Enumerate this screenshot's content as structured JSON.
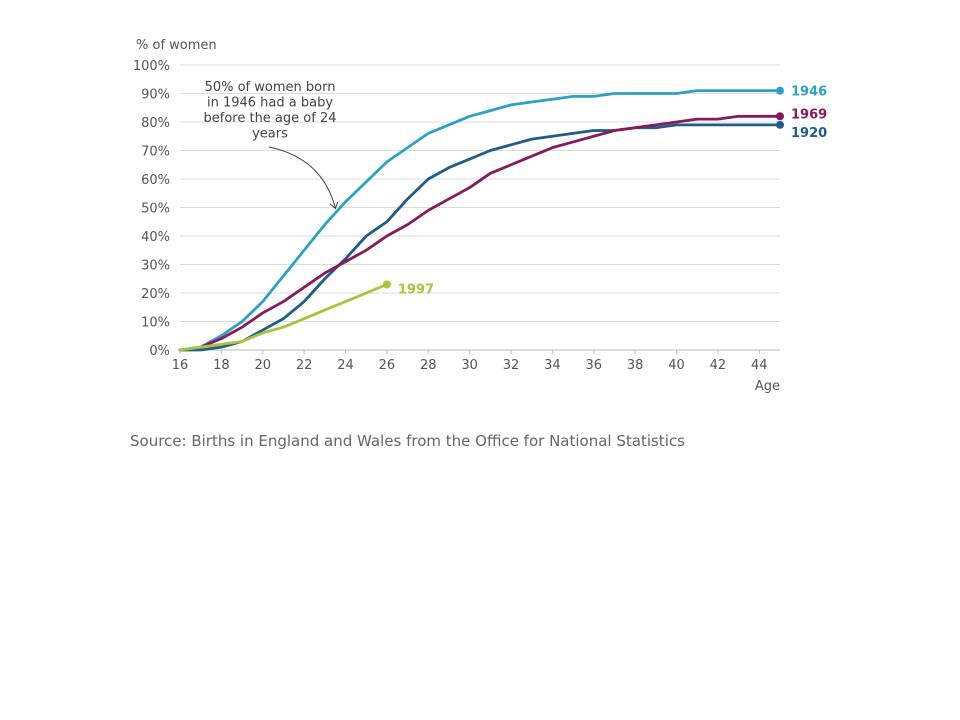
{
  "chart_data": {
    "type": "line",
    "ylabel": "% of women",
    "xlabel": "Age",
    "xlim": [
      16,
      45
    ],
    "ylim": [
      0,
      100
    ],
    "xticks": [
      16,
      18,
      20,
      22,
      24,
      26,
      28,
      30,
      32,
      34,
      36,
      38,
      40,
      42,
      44
    ],
    "yticks": [
      0,
      10,
      20,
      30,
      40,
      50,
      60,
      70,
      80,
      90,
      100
    ],
    "ytick_labels": [
      "0%",
      "10%",
      "20%",
      "30%",
      "40%",
      "50%",
      "60%",
      "70%",
      "80%",
      "90%",
      "100%"
    ],
    "grid": true,
    "series": [
      {
        "name": "1946",
        "color": "#2ea0c6",
        "x": [
          16,
          17,
          18,
          19,
          20,
          21,
          22,
          23,
          24,
          25,
          26,
          27,
          28,
          29,
          30,
          31,
          32,
          33,
          34,
          35,
          36,
          37,
          38,
          39,
          40,
          41,
          42,
          43,
          44,
          45
        ],
        "values": [
          0,
          1,
          5,
          10,
          17,
          26,
          35,
          44,
          52,
          59,
          66,
          71,
          76,
          79,
          82,
          84,
          86,
          87,
          88,
          89,
          89,
          90,
          90,
          90,
          90,
          91,
          91,
          91,
          91,
          91
        ]
      },
      {
        "name": "1920",
        "color": "#205c8a",
        "x": [
          16,
          17,
          18,
          19,
          20,
          21,
          22,
          23,
          24,
          25,
          26,
          27,
          28,
          29,
          30,
          31,
          32,
          33,
          34,
          35,
          36,
          37,
          38,
          39,
          40,
          41,
          42,
          43,
          44,
          45
        ],
        "values": [
          0,
          0,
          1,
          3,
          7,
          11,
          17,
          25,
          32,
          40,
          45,
          53,
          60,
          64,
          67,
          70,
          72,
          74,
          75,
          76,
          77,
          77,
          78,
          78,
          79,
          79,
          79,
          79,
          79,
          79
        ]
      },
      {
        "name": "1969",
        "color": "#871a5b",
        "x": [
          16,
          17,
          18,
          19,
          20,
          21,
          22,
          23,
          24,
          25,
          26,
          27,
          28,
          29,
          30,
          31,
          32,
          33,
          34,
          35,
          36,
          37,
          38,
          39,
          40,
          41,
          42,
          43,
          44,
          45
        ],
        "values": [
          0,
          1,
          4,
          8,
          13,
          17,
          22,
          27,
          31,
          35,
          40,
          44,
          49,
          53,
          57,
          62,
          65,
          68,
          71,
          73,
          75,
          77,
          78,
          79,
          80,
          81,
          81,
          82,
          82,
          82
        ]
      },
      {
        "name": "1997",
        "color": "#a8c43c",
        "x": [
          16,
          17,
          18,
          19,
          20,
          21,
          22,
          23,
          24,
          25,
          26
        ],
        "values": [
          0,
          1,
          2,
          3,
          6,
          8,
          11,
          14,
          17,
          20,
          23
        ]
      }
    ],
    "annotation": {
      "lines": [
        "50% of women born",
        "in 1946 had a baby",
        "before the age of 24",
        "years"
      ],
      "points_to": {
        "x": 23.5,
        "y": 50
      }
    }
  },
  "source": "Source: Births in England and Wales from the Office for National Statistics"
}
